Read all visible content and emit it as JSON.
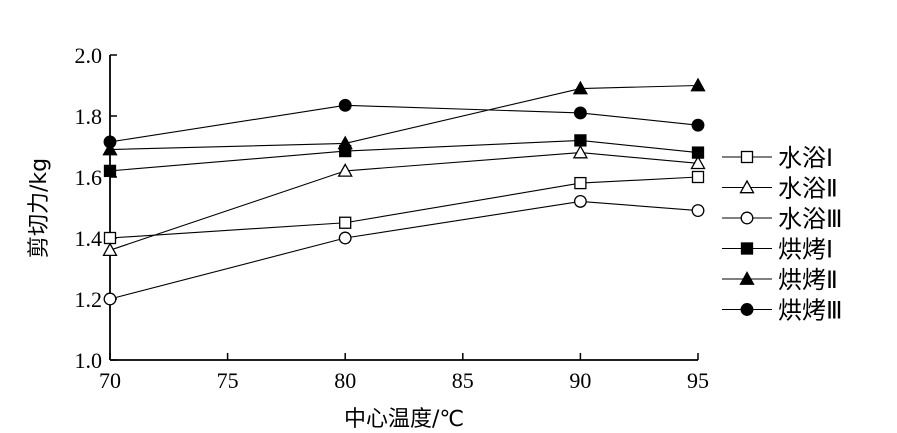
{
  "chart_data": {
    "type": "line",
    "title": "",
    "xlabel": "中心温度/℃",
    "ylabel": "剪切力/kg",
    "x": [
      70,
      80,
      90,
      95
    ],
    "xlim": [
      70,
      95
    ],
    "ylim": [
      1.0,
      2.0
    ],
    "xticks": [
      "70",
      "75",
      "80",
      "85",
      "90",
      "95"
    ],
    "yticks": [
      "1.0",
      "1.2",
      "1.4",
      "1.6",
      "1.8",
      "2.0"
    ],
    "grid": false,
    "legend_position": "right",
    "series": [
      {
        "name": "水浴Ⅰ",
        "marker": "square-open",
        "values": [
          1.4,
          1.45,
          1.58,
          1.6
        ]
      },
      {
        "name": "水浴Ⅱ",
        "marker": "triangle-open",
        "values": [
          1.36,
          1.62,
          1.68,
          1.645
        ]
      },
      {
        "name": "水浴Ⅲ",
        "marker": "circle-open",
        "values": [
          1.2,
          1.4,
          1.52,
          1.49
        ]
      },
      {
        "name": "烘烤Ⅰ",
        "marker": "square-filled",
        "values": [
          1.62,
          1.685,
          1.72,
          1.68
        ]
      },
      {
        "name": "烘烤Ⅱ",
        "marker": "triangle-filled",
        "values": [
          1.69,
          1.71,
          1.89,
          1.9
        ]
      },
      {
        "name": "烘烤Ⅲ",
        "marker": "circle-filled",
        "values": [
          1.715,
          1.835,
          1.81,
          1.77
        ]
      }
    ],
    "colors": {
      "line": "#000000",
      "marker_open_fill": "#ffffff",
      "marker_filled_fill": "#000000"
    }
  }
}
